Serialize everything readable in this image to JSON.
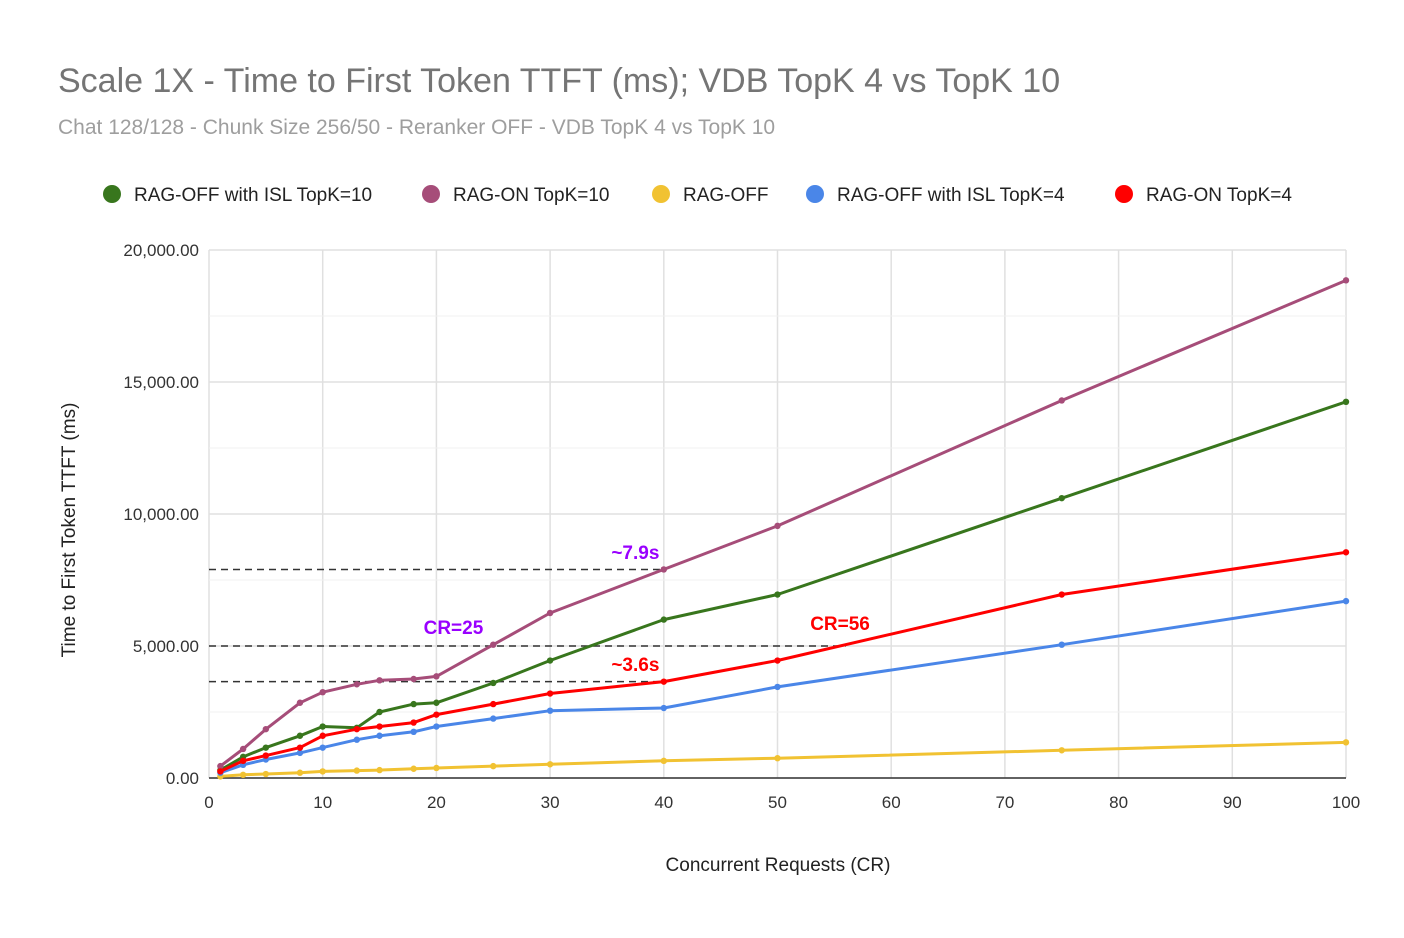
{
  "chart_data": {
    "type": "line",
    "title": "Scale 1X - Time to First Token TTFT (ms); VDB TopK 4 vs TopK 10",
    "subtitle": "Chat 128/128 - Chunk Size 256/50 - Reranker OFF - VDB TopK 4 vs TopK 10",
    "xlabel": "Concurrent Requests (CR)",
    "ylabel": "Time to First Token TTFT (ms)",
    "xlim": [
      0,
      100
    ],
    "ylim": [
      0,
      20000
    ],
    "xticks": [
      0,
      10,
      20,
      30,
      40,
      50,
      60,
      70,
      80,
      90,
      100
    ],
    "xtick_labels": [
      "0",
      "10",
      "20",
      "30",
      "40",
      "50",
      "60",
      "70",
      "80",
      "90",
      "100"
    ],
    "yticks": [
      0,
      5000,
      10000,
      15000,
      20000
    ],
    "ytick_labels": [
      "0.00",
      "5,000.00",
      "10,000.00",
      "15,000.00",
      "20,000.00"
    ],
    "grid": true,
    "legend_position": "top",
    "x": [
      1,
      3,
      5,
      8,
      10,
      13,
      15,
      18,
      20,
      25,
      30,
      40,
      50,
      75,
      100
    ],
    "series": [
      {
        "name": "RAG-OFF with ISL TopK=10",
        "color": "#38761d",
        "values": [
          300,
          800,
          1150,
          1600,
          1950,
          1900,
          2500,
          2800,
          2850,
          3600,
          4450,
          6000,
          6950,
          10600,
          14250
        ]
      },
      {
        "name": "RAG-ON TopK=10",
        "color": "#a64d79",
        "values": [
          450,
          1100,
          1850,
          2850,
          3250,
          3550,
          3700,
          3750,
          3850,
          5050,
          6250,
          7900,
          9550,
          14300,
          18850
        ]
      },
      {
        "name": "RAG-OFF",
        "color": "#f1c232",
        "values": [
          60,
          120,
          150,
          200,
          250,
          280,
          300,
          350,
          380,
          450,
          520,
          650,
          750,
          1050,
          1350
        ]
      },
      {
        "name": "RAG-OFF with ISL TopK=4",
        "color": "#4a86e8",
        "values": [
          200,
          500,
          700,
          950,
          1150,
          1450,
          1600,
          1750,
          1950,
          2250,
          2550,
          2650,
          3450,
          5050,
          6700
        ]
      },
      {
        "name": "RAG-ON TopK=4",
        "color": "#ff0000",
        "values": [
          250,
          650,
          850,
          1150,
          1600,
          1850,
          1950,
          2100,
          2400,
          2800,
          3200,
          3650,
          4450,
          6950,
          8550
        ]
      }
    ],
    "reference_lines": [
      {
        "y": 7900,
        "x_end": 40
      },
      {
        "y": 5000,
        "x_end": 56
      },
      {
        "y": 3650,
        "x_end": 40
      }
    ],
    "annotations": [
      {
        "text": "~7.9s",
        "x": 37.5,
        "y": 8300,
        "color": "#9900ff"
      },
      {
        "text": "CR=25",
        "x": 21.5,
        "y": 5450,
        "color": "#9900ff"
      },
      {
        "text": "CR=56",
        "x": 55.5,
        "y": 5600,
        "color": "#ff0000"
      },
      {
        "text": "~3.6s",
        "x": 37.5,
        "y": 4050,
        "color": "#ff0000"
      }
    ]
  }
}
